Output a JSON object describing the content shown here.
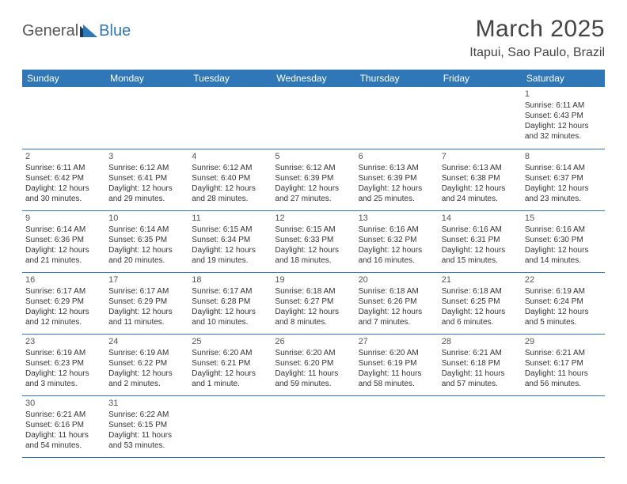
{
  "logo": {
    "part1": "General",
    "part2": "Blue"
  },
  "title": "March 2025",
  "location": "Itapui, Sao Paulo, Brazil",
  "colors": {
    "header_bg": "#2f77b6",
    "header_fg": "#ffffff",
    "rule": "#2f77b6",
    "text": "#333333"
  },
  "day_headers": [
    "Sunday",
    "Monday",
    "Tuesday",
    "Wednesday",
    "Thursday",
    "Friday",
    "Saturday"
  ],
  "weeks": [
    [
      null,
      null,
      null,
      null,
      null,
      null,
      {
        "n": "1",
        "sr": "6:11 AM",
        "ss": "6:43 PM",
        "dl": "12 hours and 32 minutes."
      }
    ],
    [
      {
        "n": "2",
        "sr": "6:11 AM",
        "ss": "6:42 PM",
        "dl": "12 hours and 30 minutes."
      },
      {
        "n": "3",
        "sr": "6:12 AM",
        "ss": "6:41 PM",
        "dl": "12 hours and 29 minutes."
      },
      {
        "n": "4",
        "sr": "6:12 AM",
        "ss": "6:40 PM",
        "dl": "12 hours and 28 minutes."
      },
      {
        "n": "5",
        "sr": "6:12 AM",
        "ss": "6:39 PM",
        "dl": "12 hours and 27 minutes."
      },
      {
        "n": "6",
        "sr": "6:13 AM",
        "ss": "6:39 PM",
        "dl": "12 hours and 25 minutes."
      },
      {
        "n": "7",
        "sr": "6:13 AM",
        "ss": "6:38 PM",
        "dl": "12 hours and 24 minutes."
      },
      {
        "n": "8",
        "sr": "6:14 AM",
        "ss": "6:37 PM",
        "dl": "12 hours and 23 minutes."
      }
    ],
    [
      {
        "n": "9",
        "sr": "6:14 AM",
        "ss": "6:36 PM",
        "dl": "12 hours and 21 minutes."
      },
      {
        "n": "10",
        "sr": "6:14 AM",
        "ss": "6:35 PM",
        "dl": "12 hours and 20 minutes."
      },
      {
        "n": "11",
        "sr": "6:15 AM",
        "ss": "6:34 PM",
        "dl": "12 hours and 19 minutes."
      },
      {
        "n": "12",
        "sr": "6:15 AM",
        "ss": "6:33 PM",
        "dl": "12 hours and 18 minutes."
      },
      {
        "n": "13",
        "sr": "6:16 AM",
        "ss": "6:32 PM",
        "dl": "12 hours and 16 minutes."
      },
      {
        "n": "14",
        "sr": "6:16 AM",
        "ss": "6:31 PM",
        "dl": "12 hours and 15 minutes."
      },
      {
        "n": "15",
        "sr": "6:16 AM",
        "ss": "6:30 PM",
        "dl": "12 hours and 14 minutes."
      }
    ],
    [
      {
        "n": "16",
        "sr": "6:17 AM",
        "ss": "6:29 PM",
        "dl": "12 hours and 12 minutes."
      },
      {
        "n": "17",
        "sr": "6:17 AM",
        "ss": "6:29 PM",
        "dl": "12 hours and 11 minutes."
      },
      {
        "n": "18",
        "sr": "6:17 AM",
        "ss": "6:28 PM",
        "dl": "12 hours and 10 minutes."
      },
      {
        "n": "19",
        "sr": "6:18 AM",
        "ss": "6:27 PM",
        "dl": "12 hours and 8 minutes."
      },
      {
        "n": "20",
        "sr": "6:18 AM",
        "ss": "6:26 PM",
        "dl": "12 hours and 7 minutes."
      },
      {
        "n": "21",
        "sr": "6:18 AM",
        "ss": "6:25 PM",
        "dl": "12 hours and 6 minutes."
      },
      {
        "n": "22",
        "sr": "6:19 AM",
        "ss": "6:24 PM",
        "dl": "12 hours and 5 minutes."
      }
    ],
    [
      {
        "n": "23",
        "sr": "6:19 AM",
        "ss": "6:23 PM",
        "dl": "12 hours and 3 minutes."
      },
      {
        "n": "24",
        "sr": "6:19 AM",
        "ss": "6:22 PM",
        "dl": "12 hours and 2 minutes."
      },
      {
        "n": "25",
        "sr": "6:20 AM",
        "ss": "6:21 PM",
        "dl": "12 hours and 1 minute."
      },
      {
        "n": "26",
        "sr": "6:20 AM",
        "ss": "6:20 PM",
        "dl": "11 hours and 59 minutes."
      },
      {
        "n": "27",
        "sr": "6:20 AM",
        "ss": "6:19 PM",
        "dl": "11 hours and 58 minutes."
      },
      {
        "n": "28",
        "sr": "6:21 AM",
        "ss": "6:18 PM",
        "dl": "11 hours and 57 minutes."
      },
      {
        "n": "29",
        "sr": "6:21 AM",
        "ss": "6:17 PM",
        "dl": "11 hours and 56 minutes."
      }
    ],
    [
      {
        "n": "30",
        "sr": "6:21 AM",
        "ss": "6:16 PM",
        "dl": "11 hours and 54 minutes."
      },
      {
        "n": "31",
        "sr": "6:22 AM",
        "ss": "6:15 PM",
        "dl": "11 hours and 53 minutes."
      },
      null,
      null,
      null,
      null,
      null
    ]
  ],
  "labels": {
    "sunrise": "Sunrise:",
    "sunset": "Sunset:",
    "daylight": "Daylight:"
  }
}
